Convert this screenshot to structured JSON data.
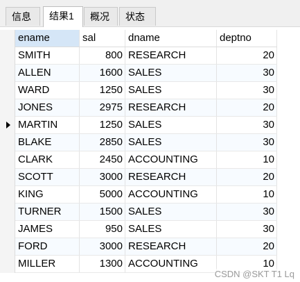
{
  "tabs": [
    {
      "label": "信息"
    },
    {
      "label": "结果1"
    },
    {
      "label": "概况"
    },
    {
      "label": "状态"
    }
  ],
  "table": {
    "columns": [
      "ename",
      "sal",
      "dname",
      "deptno"
    ],
    "rows": [
      [
        "SMITH",
        "800",
        "RESEARCH",
        "20"
      ],
      [
        "ALLEN",
        "1600",
        "SALES",
        "30"
      ],
      [
        "WARD",
        "1250",
        "SALES",
        "30"
      ],
      [
        "JONES",
        "2975",
        "RESEARCH",
        "20"
      ],
      [
        "MARTIN",
        "1250",
        "SALES",
        "30"
      ],
      [
        "BLAKE",
        "2850",
        "SALES",
        "30"
      ],
      [
        "CLARK",
        "2450",
        "ACCOUNTING",
        "10"
      ],
      [
        "SCOTT",
        "3000",
        "RESEARCH",
        "20"
      ],
      [
        "KING",
        "5000",
        "ACCOUNTING",
        "10"
      ],
      [
        "TURNER",
        "1500",
        "SALES",
        "30"
      ],
      [
        "JAMES",
        "950",
        "SALES",
        "30"
      ],
      [
        "FORD",
        "3000",
        "RESEARCH",
        "20"
      ],
      [
        "MILLER",
        "1300",
        "ACCOUNTING",
        "10"
      ]
    ],
    "current_row_index": 4
  },
  "watermark": "CSDN @SKT T1 Lq",
  "icons": {
    "row_indicator": "triangle-right-icon"
  },
  "colors": {
    "selected_header": "#d5e6f7",
    "alt_row": "#f7fbff",
    "tabbar_bg": "#f0f0f0"
  }
}
